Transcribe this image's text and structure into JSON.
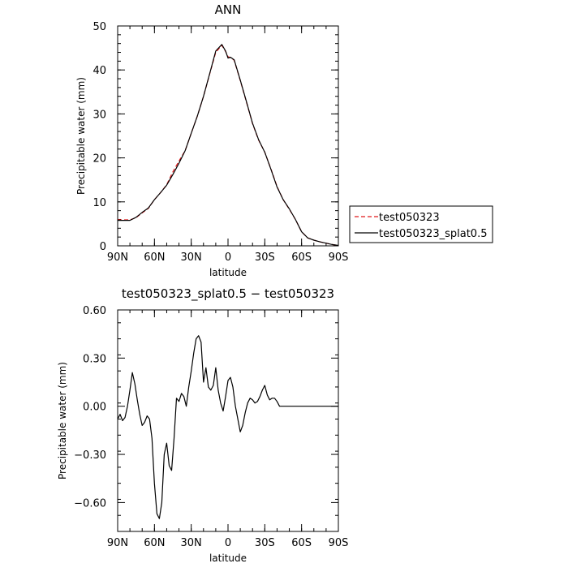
{
  "chart_data": [
    {
      "type": "line",
      "title": "ANN",
      "xlabel": "latitude",
      "ylabel": "Precipitable water (mm)",
      "xlim": [
        90,
        -90
      ],
      "ylim": [
        0,
        50
      ],
      "x_tick_values": [
        90,
        60,
        30,
        0,
        -30,
        -60,
        -90
      ],
      "x_tick_labels": [
        "90N",
        "60N",
        "30N",
        "0",
        "30S",
        "60S",
        "90S"
      ],
      "y_tick_values": [
        0,
        10,
        20,
        30,
        40,
        50
      ],
      "y_tick_labels": [
        "0",
        "10",
        "20",
        "30",
        "40",
        "50"
      ],
      "legend": "right",
      "series": [
        {
          "name": "test050323",
          "color": "#e0191b",
          "dash": "dashed",
          "x": [
            90,
            80,
            75,
            70,
            65,
            60,
            55,
            50,
            45,
            40,
            35,
            30,
            25,
            20,
            15,
            10,
            5,
            2,
            0,
            -2,
            -5,
            -10,
            -15,
            -20,
            -25,
            -30,
            -35,
            -40,
            -45,
            -50,
            -55,
            -60,
            -65,
            -70,
            -75,
            -80,
            -85,
            -90
          ],
          "y": [
            5.9,
            5.9,
            6.4,
            7.5,
            8.5,
            10.5,
            12.1,
            13.9,
            16.8,
            19.3,
            21.6,
            25.6,
            29.5,
            34.0,
            39.0,
            44.0,
            45.6,
            44.2,
            43.0,
            42.8,
            42.2,
            37.6,
            32.7,
            27.8,
            24.0,
            21.3,
            17.5,
            13.5,
            10.5,
            8.3,
            6.0,
            3.2,
            1.8,
            1.3,
            0.9,
            0.6,
            0.3,
            0.1
          ]
        },
        {
          "name": "test050323_splat0.5",
          "color": "#000000",
          "dash": "solid",
          "x": [
            90,
            80,
            75,
            70,
            65,
            60,
            55,
            50,
            45,
            40,
            35,
            30,
            25,
            20,
            15,
            10,
            5,
            2,
            0,
            -2,
            -5,
            -10,
            -15,
            -20,
            -25,
            -30,
            -35,
            -40,
            -45,
            -50,
            -55,
            -60,
            -65,
            -70,
            -75,
            -80,
            -85,
            -90
          ],
          "y": [
            5.8,
            5.8,
            6.5,
            7.6,
            8.6,
            10.5,
            12.1,
            13.8,
            16.2,
            18.8,
            21.6,
            25.6,
            29.5,
            34.0,
            39.1,
            44.3,
            45.8,
            44.3,
            42.7,
            42.9,
            42.3,
            37.7,
            32.8,
            27.9,
            24.1,
            21.3,
            17.4,
            13.4,
            10.5,
            8.4,
            6.0,
            3.2,
            1.8,
            1.3,
            0.9,
            0.6,
            0.3,
            0.1
          ]
        }
      ]
    },
    {
      "type": "line",
      "title": "test050323_splat0.5 − test050323",
      "xlabel": "latitude",
      "ylabel": "Precipitable water (mm)",
      "xlim": [
        90,
        -90
      ],
      "ylim": [
        -0.78,
        0.6
      ],
      "x_tick_values": [
        90,
        60,
        30,
        0,
        -30,
        -60,
        -90
      ],
      "x_tick_labels": [
        "90N",
        "60N",
        "30N",
        "0",
        "30S",
        "60S",
        "90S"
      ],
      "y_tick_values": [
        0.6,
        0.3,
        0.0,
        -0.3,
        -0.6
      ],
      "y_tick_labels": [
        "0.60",
        "0.30",
        "0.00",
        "−0.30",
        "−0.60"
      ],
      "series": [
        {
          "color": "#000000",
          "dash": "solid",
          "x": [
            90,
            88,
            86,
            84,
            82,
            80,
            78,
            76,
            74,
            72,
            70,
            68,
            66,
            64,
            62,
            60,
            58,
            56,
            54,
            52,
            50,
            48,
            46,
            44,
            42,
            40,
            38,
            36,
            34,
            32,
            30,
            28,
            26,
            24,
            22,
            20,
            18,
            16,
            14,
            12,
            10,
            8,
            6,
            4,
            2,
            0,
            -2,
            -4,
            -6,
            -8,
            -10,
            -12,
            -14,
            -16,
            -18,
            -20,
            -22,
            -24,
            -26,
            -28,
            -30,
            -32,
            -34,
            -36,
            -38,
            -40,
            -42,
            -44,
            -46,
            -48,
            -50,
            -52,
            -54,
            -56,
            -58,
            -60,
            -62,
            -64,
            -66,
            -68,
            -70,
            -72,
            -74,
            -76,
            -78,
            -80,
            -82,
            -84,
            -86,
            -88,
            -90
          ],
          "y": [
            -0.08,
            -0.05,
            -0.09,
            -0.07,
            0.0,
            0.1,
            0.21,
            0.14,
            0.04,
            -0.05,
            -0.12,
            -0.1,
            -0.06,
            -0.08,
            -0.2,
            -0.48,
            -0.67,
            -0.7,
            -0.6,
            -0.3,
            -0.23,
            -0.37,
            -0.4,
            -0.2,
            0.05,
            0.03,
            0.08,
            0.06,
            0.0,
            0.12,
            0.22,
            0.33,
            0.42,
            0.44,
            0.4,
            0.15,
            0.24,
            0.12,
            0.1,
            0.13,
            0.24,
            0.1,
            0.02,
            -0.03,
            0.06,
            0.16,
            0.18,
            0.12,
            0.0,
            -0.08,
            -0.16,
            -0.12,
            -0.04,
            0.02,
            0.05,
            0.04,
            0.02,
            0.03,
            0.06,
            0.1,
            0.13,
            0.07,
            0.04,
            0.05,
            0.05,
            0.03,
            0.0,
            0.0,
            0.0,
            0.0,
            0.0,
            0.0,
            0.0,
            0.0,
            0.0,
            0.0,
            0.0,
            0.0,
            0.0,
            0.0,
            0.0,
            0.0,
            0.0,
            0.0,
            0.0,
            0.0,
            0.0,
            0.0,
            0.0,
            0.0,
            0.0
          ]
        }
      ]
    }
  ]
}
